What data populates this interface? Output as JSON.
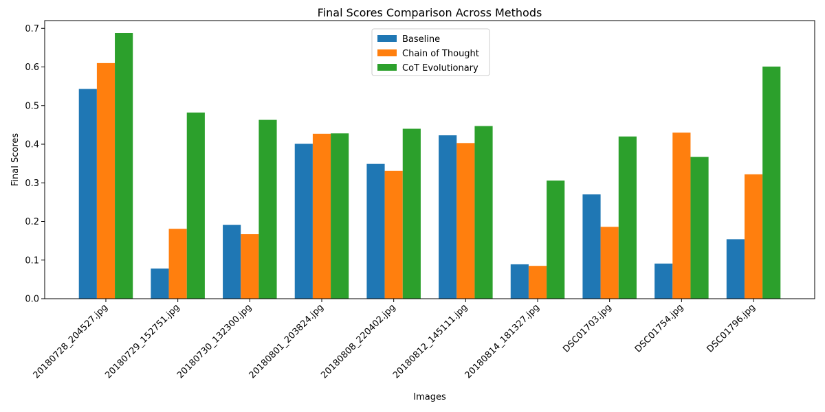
{
  "chart_data": {
    "type": "bar",
    "title": "Final Scores Comparison Across Methods",
    "xlabel": "Images",
    "ylabel": "Final Scores",
    "ylim": [
      0,
      0.72
    ],
    "yticks": [
      0.0,
      0.1,
      0.2,
      0.3,
      0.4,
      0.5,
      0.6,
      0.7
    ],
    "ytick_labels": [
      "0.0",
      "0.1",
      "0.2",
      "0.3",
      "0.4",
      "0.5",
      "0.6",
      "0.7"
    ],
    "grid": false,
    "legend_position": "top-center",
    "categories": [
      "20180728_204527.jpg",
      "20180729_152751.jpg",
      "20180730_132300.jpg",
      "20180801_203824.jpg",
      "20180808_220402.jpg",
      "20180812_145111.jpg",
      "20180814_181327.jpg",
      "DSC01703.jpg",
      "DSC01754.jpg",
      "DSC01796.jpg"
    ],
    "series": [
      {
        "name": "Baseline",
        "color": "#1f77b4",
        "values": [
          0.543,
          0.078,
          0.191,
          0.401,
          0.349,
          0.423,
          0.089,
          0.27,
          0.091,
          0.154
        ]
      },
      {
        "name": "Chain of Thought",
        "color": "#ff7f0e",
        "values": [
          0.61,
          0.181,
          0.167,
          0.427,
          0.331,
          0.403,
          0.085,
          0.186,
          0.43,
          0.322
        ]
      },
      {
        "name": "CoT Evolutionary",
        "color": "#2ca02c",
        "values": [
          0.688,
          0.482,
          0.463,
          0.428,
          0.44,
          0.447,
          0.306,
          0.42,
          0.367,
          0.601
        ]
      }
    ]
  }
}
